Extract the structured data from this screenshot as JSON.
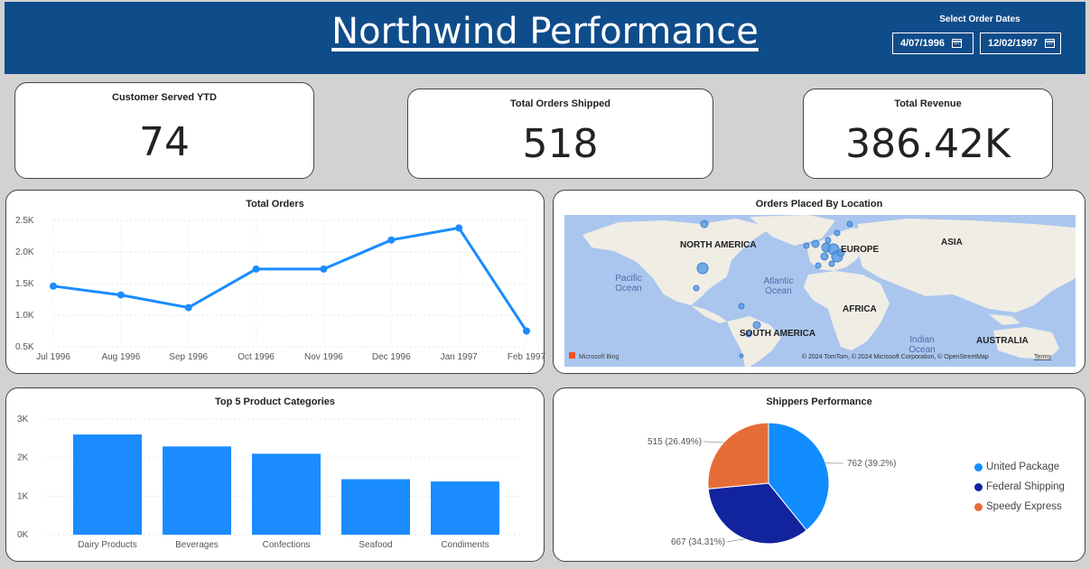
{
  "header": {
    "title": "Northwind Performance",
    "date_caption": "Select Order Dates",
    "start_date": "4/07/1996",
    "end_date": "12/02/1997"
  },
  "kpis": {
    "customers": {
      "label": "Customer Served YTD",
      "value": "74"
    },
    "orders": {
      "label": "Total Orders Shipped",
      "value": "518"
    },
    "revenue": {
      "label": "Total Revenue",
      "value": "386.42K"
    }
  },
  "map": {
    "title": "Orders Placed By Location",
    "labels": {
      "north_america": "NORTH AMERICA",
      "europe": "EUROPE",
      "asia": "ASIA",
      "africa": "AFRICA",
      "south_america": "SOUTH AMERICA",
      "australia": "AUSTRALIA",
      "pacific": "Pacific\nOcean",
      "atlantic": "Atlantic\nOcean",
      "indian": "Indian\nOcean"
    },
    "bing": "Microsoft Bing",
    "copyright": "© 2024 TomTom, © 2024 Microsoft Corporation, © OpenStreetMap",
    "terms": "Terms",
    "colors": {
      "water": "#aac6ee",
      "land": "#f0ede5",
      "bubble": "#5b9be6"
    }
  },
  "chart_data": [
    {
      "type": "line",
      "title": "Total Orders",
      "categories": [
        "Jul 1996",
        "Aug 1996",
        "Sep 1996",
        "Oct 1996",
        "Nov 1996",
        "Dec 1996",
        "Jan 1997",
        "Feb 1997"
      ],
      "values": [
        1460,
        1320,
        1120,
        1730,
        1730,
        2190,
        2380,
        750
      ],
      "yticks": [
        "0.5K",
        "1.0K",
        "1.5K",
        "2.0K",
        "2.5K"
      ],
      "ylim": [
        500,
        2500
      ],
      "color": "#1a8cff"
    },
    {
      "type": "bar",
      "title": "Top 5 Product Categories",
      "categories": [
        "Dairy Products",
        "Beverages",
        "Confections",
        "Seafood",
        "Condiments"
      ],
      "values": [
        2600,
        2290,
        2100,
        1440,
        1380
      ],
      "yticks": [
        "0K",
        "1K",
        "2K",
        "3K"
      ],
      "ylim": [
        0,
        3000
      ],
      "color": "#1a8cff"
    },
    {
      "type": "pie",
      "title": "Shippers Performance",
      "slices": [
        {
          "name": "United Package",
          "value": 762,
          "label": "762 (39.2%)",
          "color": "#118dff"
        },
        {
          "name": "Federal Shipping",
          "value": 667,
          "label": "667 (34.31%)",
          "color": "#12239e"
        },
        {
          "name": "Speedy Express",
          "value": 515,
          "label": "515 (26.49%)",
          "color": "#e66c37"
        }
      ]
    }
  ]
}
